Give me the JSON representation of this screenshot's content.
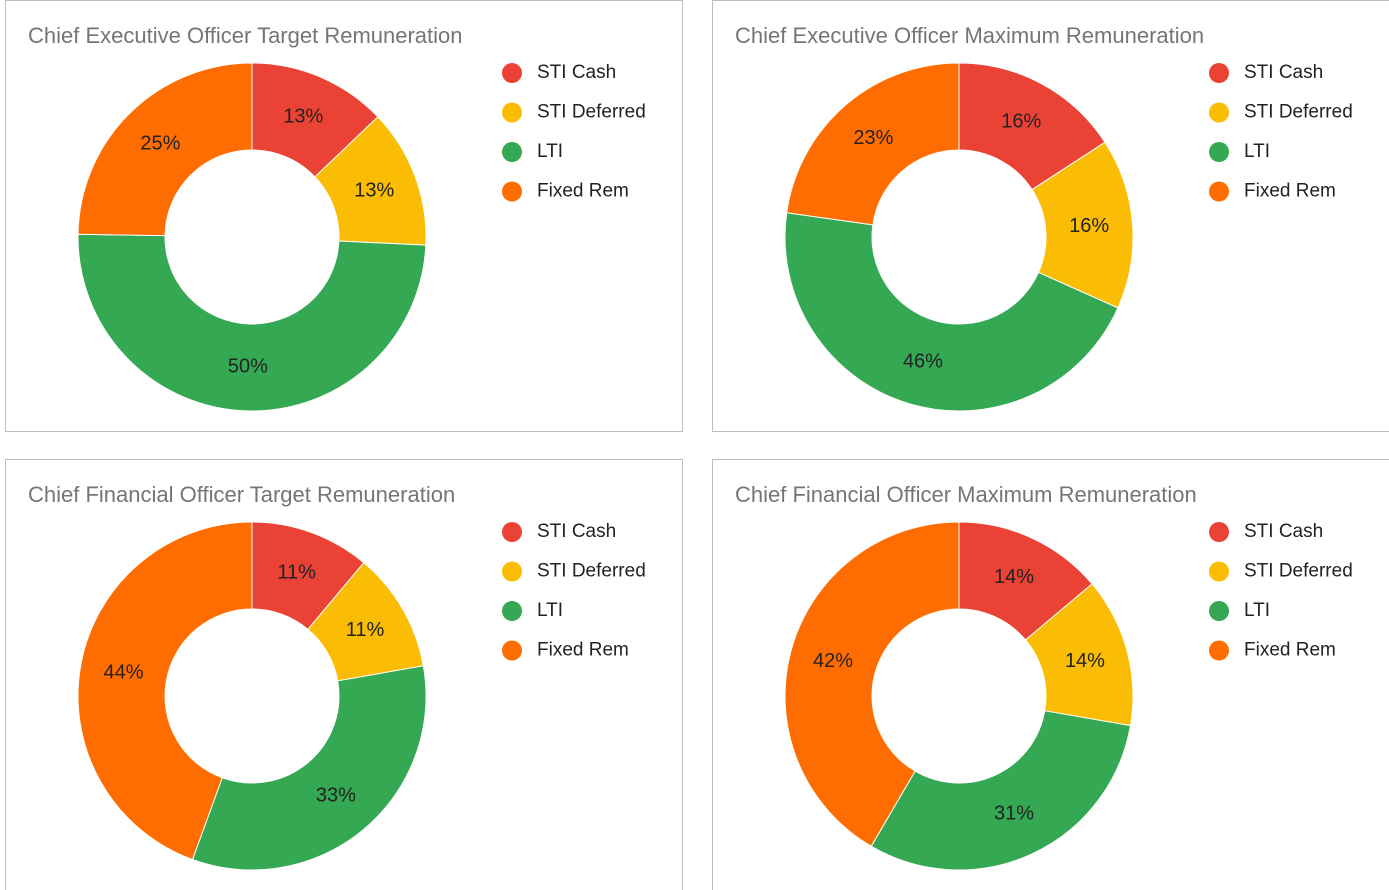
{
  "chart_data": [
    {
      "type": "pie",
      "title": "Chief Executive Officer Target Remuneration",
      "pie_hole": 0.5,
      "categories": [
        "STI Cash",
        "STI Deferred",
        "LTI",
        "Fixed Rem"
      ],
      "values": [
        13,
        13,
        50,
        25
      ],
      "colors": [
        "#ea4335",
        "#fbbc04",
        "#34a853",
        "#ff6d01"
      ],
      "legend": "right"
    },
    {
      "type": "pie",
      "title": "Chief Executive Officer Maximum Remuneration",
      "pie_hole": 0.5,
      "categories": [
        "STI Cash",
        "STI Deferred",
        "LTI",
        "Fixed Rem"
      ],
      "values": [
        16,
        16,
        46,
        23
      ],
      "colors": [
        "#ea4335",
        "#fbbc04",
        "#34a853",
        "#ff6d01"
      ],
      "legend": "right"
    },
    {
      "type": "pie",
      "title": "Chief Financial Officer Target Remuneration",
      "pie_hole": 0.5,
      "categories": [
        "STI Cash",
        "STI Deferred",
        "LTI",
        "Fixed Rem"
      ],
      "values": [
        11,
        11,
        33,
        44
      ],
      "colors": [
        "#ea4335",
        "#fbbc04",
        "#34a853",
        "#ff6d01"
      ],
      "legend": "right"
    },
    {
      "type": "pie",
      "title": "Chief Financial Officer Maximum Remuneration",
      "pie_hole": 0.5,
      "categories": [
        "STI Cash",
        "STI Deferred",
        "LTI",
        "Fixed Rem"
      ],
      "values": [
        14,
        14,
        31,
        42
      ],
      "colors": [
        "#ea4335",
        "#fbbc04",
        "#34a853",
        "#ff6d01"
      ],
      "legend": "right"
    }
  ]
}
